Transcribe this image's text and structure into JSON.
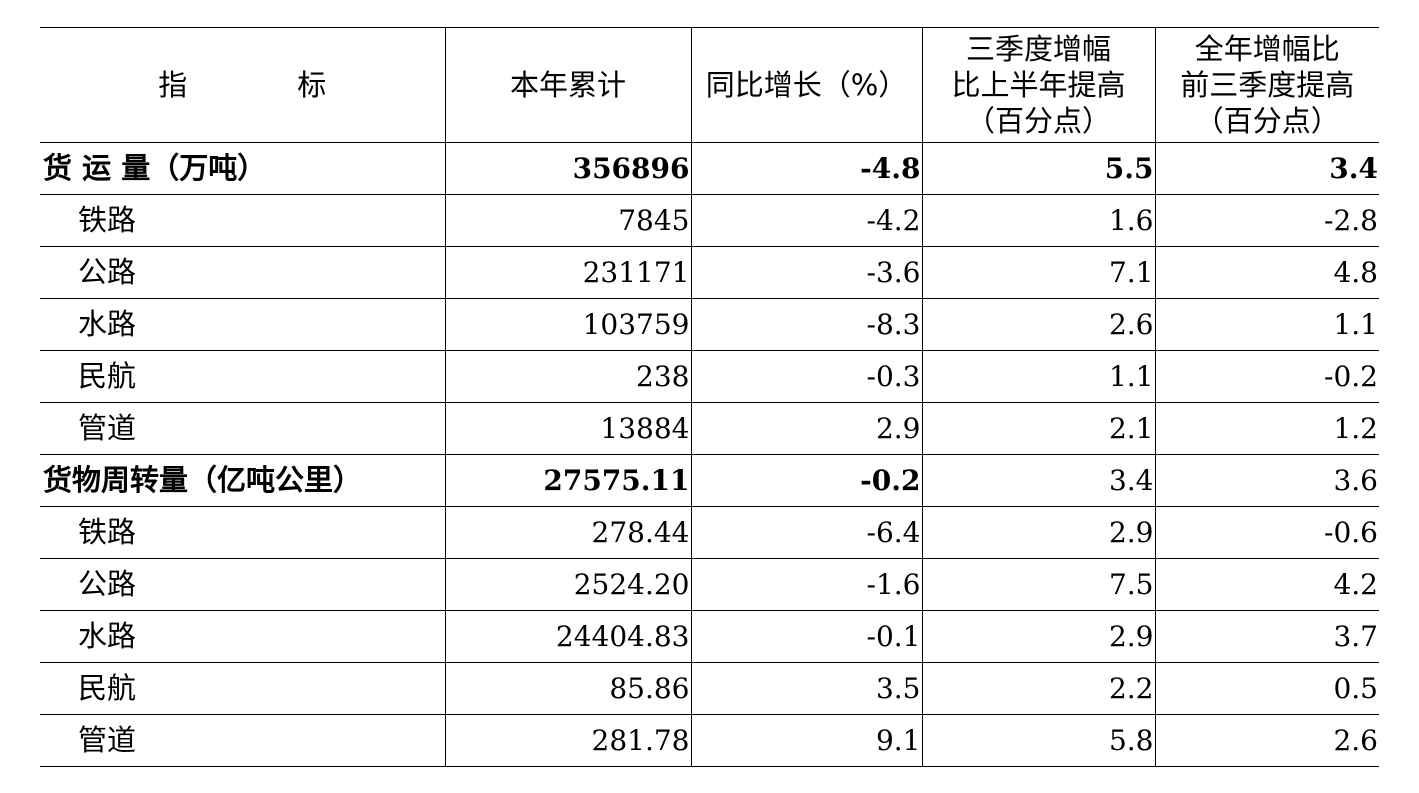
{
  "table": {
    "headers": {
      "indicator_a": "指",
      "indicator_b": "标",
      "ytd": "本年累计",
      "yoy": "同比增长（%）",
      "q3_line1": "三季度增幅",
      "q3_line2": "比上半年提高",
      "q3_line3": "（百分点）",
      "fy_line1": "全年增幅比",
      "fy_line2": "前三季度提高",
      "fy_line3": "（百分点）"
    },
    "rows": [
      {
        "label": "货 运 量（万吨）",
        "ytd": "356896",
        "yoy": "-4.8",
        "q3": "5.5",
        "fy": "3.4"
      },
      {
        "label": "铁路",
        "ytd": "7845",
        "yoy": "-4.2",
        "q3": "1.6",
        "fy": "-2.8"
      },
      {
        "label": "公路",
        "ytd": "231171",
        "yoy": "-3.6",
        "q3": "7.1",
        "fy": "4.8"
      },
      {
        "label": "水路",
        "ytd": "103759",
        "yoy": "-8.3",
        "q3": "2.6",
        "fy": "1.1"
      },
      {
        "label": "民航",
        "ytd": "238",
        "yoy": "-0.3",
        "q3": "1.1",
        "fy": "-0.2"
      },
      {
        "label": "管道",
        "ytd": "13884",
        "yoy": "2.9",
        "q3": "2.1",
        "fy": "1.2"
      },
      {
        "label": "货物周转量（亿吨公里）",
        "ytd": "27575.11",
        "yoy": "-0.2",
        "q3": "3.4",
        "fy": "3.6"
      },
      {
        "label": "铁路",
        "ytd": "278.44",
        "yoy": "-6.4",
        "q3": "2.9",
        "fy": "-0.6"
      },
      {
        "label": "公路",
        "ytd": "2524.20",
        "yoy": "-1.6",
        "q3": "7.5",
        "fy": "4.2"
      },
      {
        "label": "水路",
        "ytd": "24404.83",
        "yoy": "-0.1",
        "q3": "2.9",
        "fy": "3.7"
      },
      {
        "label": "民航",
        "ytd": "85.86",
        "yoy": "3.5",
        "q3": "2.2",
        "fy": "0.5"
      },
      {
        "label": "管道",
        "ytd": "281.78",
        "yoy": "9.1",
        "q3": "5.8",
        "fy": "2.6"
      }
    ]
  }
}
